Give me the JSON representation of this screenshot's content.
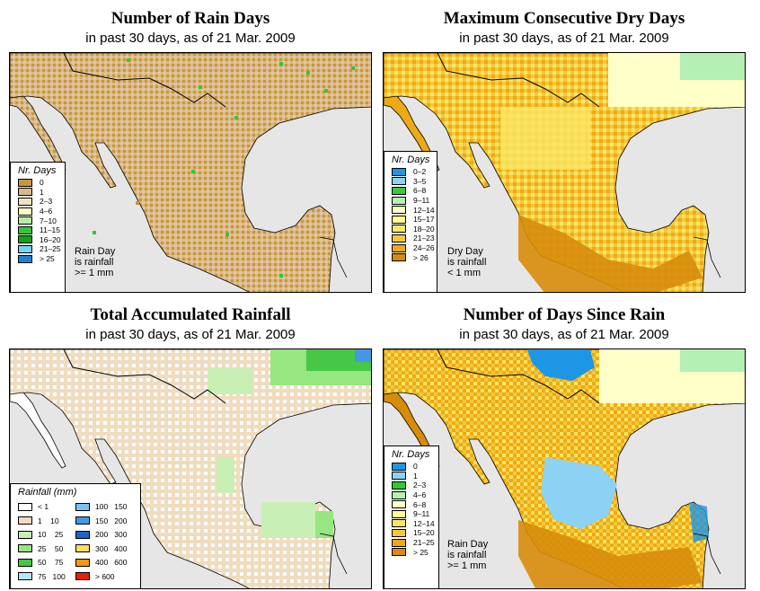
{
  "panels": [
    {
      "title": "Number of Rain Days",
      "subtitle": "in past 30 days, as of  21 Mar. 2009",
      "legend_title": "Nr. Days",
      "legend": [
        {
          "label": "0",
          "color": "#c8963c"
        },
        {
          "label": "1",
          "color": "#d9b98a"
        },
        {
          "label": "2–3",
          "color": "#f0e1c3"
        },
        {
          "label": "4–6",
          "color": "#ffffc8"
        },
        {
          "label": "7–10",
          "color": "#b4f0a0"
        },
        {
          "label": "11–15",
          "color": "#32c832"
        },
        {
          "label": "16–20",
          "color": "#14a014"
        },
        {
          "label": "21–25",
          "color": "#78d2f0"
        },
        {
          "label": "> 25",
          "color": "#1e82d2"
        }
      ],
      "note": [
        "Rain Day",
        "is rainfall",
        ">= 1 mm"
      ]
    },
    {
      "title": "Maximum Consecutive Dry Days",
      "subtitle": "in past 30 days, as of  21 Mar. 2009",
      "legend_title": "Nr. Days",
      "legend": [
        {
          "label": "0–2",
          "color": "#1e96e6"
        },
        {
          "label": "3–5",
          "color": "#8cd2f5"
        },
        {
          "label": "6–8",
          "color": "#3cc83c"
        },
        {
          "label": "9–11",
          "color": "#b4f0b4"
        },
        {
          "label": "12–14",
          "color": "#ffffc8"
        },
        {
          "label": "15–17",
          "color": "#ffff96"
        },
        {
          "label": "18–20",
          "color": "#fae664"
        },
        {
          "label": "21–23",
          "color": "#f5c83c"
        },
        {
          "label": "24–26",
          "color": "#eeaa14"
        },
        {
          "label": "> 26",
          "color": "#d78c0a"
        }
      ],
      "note": [
        "Dry Day",
        "is rainfall",
        "< 1 mm"
      ]
    },
    {
      "title": "Total Accumulated Rainfall",
      "subtitle": "in past 30 days, as of  21 Mar. 2009",
      "legend_title": "Rainfall (mm)",
      "legend": [
        {
          "label": "< 1",
          "color": "#ffffff"
        },
        {
          "label": "1    10",
          "color": "#f0dcbe"
        },
        {
          "label": "10    25",
          "color": "#c8f0b4"
        },
        {
          "label": "25    50",
          "color": "#96e682"
        },
        {
          "label": "50    75",
          "color": "#46c846"
        },
        {
          "label": "75   100",
          "color": "#b4e6fa"
        },
        {
          "label": "100   150",
          "color": "#82bef0"
        },
        {
          "label": "150   200",
          "color": "#4696e6"
        },
        {
          "label": "200   300",
          "color": "#1e64c8"
        },
        {
          "label": "300   400",
          "color": "#ffdc64"
        },
        {
          "label": "400   600",
          "color": "#fa9614"
        },
        {
          "label": "> 600",
          "color": "#e61e0a"
        }
      ],
      "note": []
    },
    {
      "title": "Number of Days Since Rain",
      "subtitle": "in past 30 days, as of  21 Mar. 2009",
      "legend_title": "Nr. Days",
      "legend": [
        {
          "label": "0",
          "color": "#1e96e6"
        },
        {
          "label": "1",
          "color": "#8cd2f5"
        },
        {
          "label": "2–3",
          "color": "#32c832"
        },
        {
          "label": "4–6",
          "color": "#b4f0b4"
        },
        {
          "label": "6–8",
          "color": "#ffffc8"
        },
        {
          "label": "9–11",
          "color": "#ffff96"
        },
        {
          "label": "12–14",
          "color": "#fae664"
        },
        {
          "label": "15–20",
          "color": "#f5c83c"
        },
        {
          "label": "21–25",
          "color": "#eeaa14"
        },
        {
          "label": "> 25",
          "color": "#d78c0a"
        }
      ],
      "note": [
        "Rain Day",
        "is rainfall",
        ">= 1 mm"
      ]
    }
  ],
  "colors": {
    "water": "#e6e6e6",
    "border": "#000000"
  }
}
